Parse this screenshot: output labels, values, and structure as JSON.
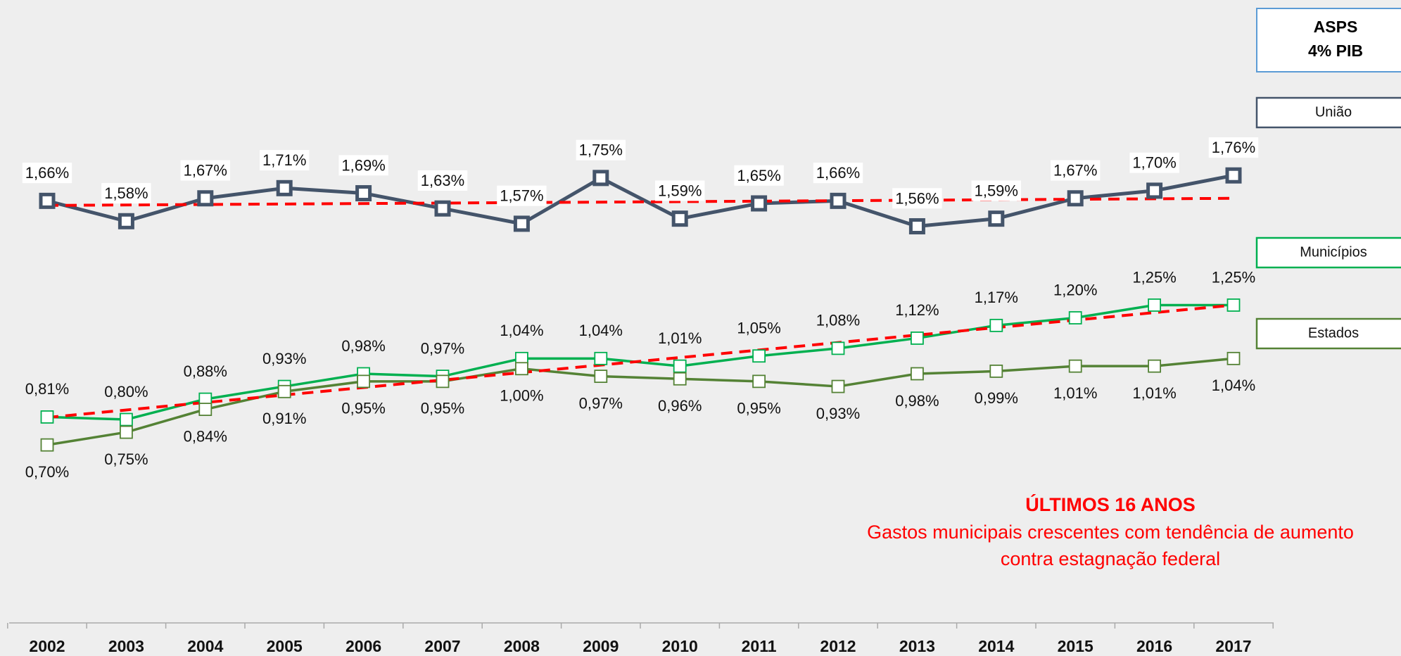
{
  "chart_data": {
    "type": "line",
    "categories": [
      "2002",
      "2003",
      "2004",
      "2005",
      "2006",
      "2007",
      "2008",
      "2009",
      "2010",
      "2011",
      "2012",
      "2013",
      "2014",
      "2015",
      "2016",
      "2017"
    ],
    "series": [
      {
        "name": "União",
        "color": "#44546a",
        "label_side": "above",
        "values": [
          1.66,
          1.58,
          1.67,
          1.71,
          1.69,
          1.63,
          1.57,
          1.75,
          1.59,
          1.65,
          1.66,
          1.56,
          1.59,
          1.67,
          1.7,
          1.76
        ],
        "value_labels": [
          "1,66%",
          "1,58%",
          "1,67%",
          "1,71%",
          "1,69%",
          "1,63%",
          "1,57%",
          "1,75%",
          "1,59%",
          "1,65%",
          "1,66%",
          "1,56%",
          "1,59%",
          "1,67%",
          "1,70%",
          "1,76%"
        ]
      },
      {
        "name": "Municípios",
        "color": "#00b050",
        "label_side": "above",
        "values": [
          0.81,
          0.8,
          0.88,
          0.93,
          0.98,
          0.97,
          1.04,
          1.04,
          1.01,
          1.05,
          1.08,
          1.12,
          1.17,
          1.2,
          1.25,
          1.25
        ],
        "value_labels": [
          "0,81%",
          "0,80%",
          "0,88%",
          "0,93%",
          "0,98%",
          "0,97%",
          "1,04%",
          "1,04%",
          "1,01%",
          "1,05%",
          "1,08%",
          "1,12%",
          "1,17%",
          "1,20%",
          "1,25%",
          "1,25%"
        ]
      },
      {
        "name": "Estados",
        "color": "#548235",
        "label_side": "below",
        "values": [
          0.7,
          0.75,
          0.84,
          0.91,
          0.95,
          0.95,
          1.0,
          0.97,
          0.96,
          0.95,
          0.93,
          0.98,
          0.99,
          1.01,
          1.01,
          1.04
        ],
        "value_labels": [
          "0,70%",
          "0,75%",
          "0,84%",
          "0,91%",
          "0,95%",
          "0,95%",
          "1,00%",
          "0,97%",
          "0,96%",
          "0,95%",
          "0,93%",
          "0,98%",
          "0,99%",
          "1,01%",
          "1,01%",
          "1,04%"
        ]
      }
    ],
    "trendlines": [
      {
        "color": "#ff0000",
        "values": [
          1.642,
          1.67
        ]
      },
      {
        "color": "#ff0000",
        "values": [
          0.808,
          1.25
        ]
      }
    ],
    "ylim": [
      0,
      2.45
    ],
    "legend_title": "ASPS",
    "legend_subtitle": "4% PIB",
    "annotation": {
      "title": "ÚLTIMOS 16 ANOS",
      "lines": [
        "Gastos municipais crescentes com tendência de aumento",
        "contra estagnação federal"
      ],
      "color": "#ff0000"
    }
  }
}
